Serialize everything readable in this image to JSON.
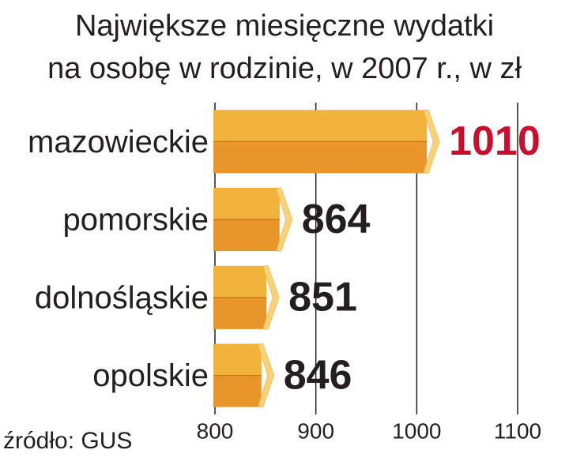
{
  "chart_data": {
    "type": "bar3d",
    "orientation": "horizontal",
    "title": "Największe miesięczne wydatki\nna osobę w rodzinie, w 2007 r., w zł",
    "categories": [
      "mazowieckie",
      "pomorskie",
      "dolnośląskie",
      "opolskie"
    ],
    "values": [
      1010,
      864,
      851,
      846
    ],
    "color": "#e8962a",
    "value_label_colors": [
      "#c8102e",
      "#231f20",
      "#231f20",
      "#231f20"
    ],
    "xlim": [
      800,
      1100
    ],
    "xticks": [
      800,
      900,
      1000,
      1100
    ],
    "grid": true,
    "source": "źródło: GUS"
  }
}
